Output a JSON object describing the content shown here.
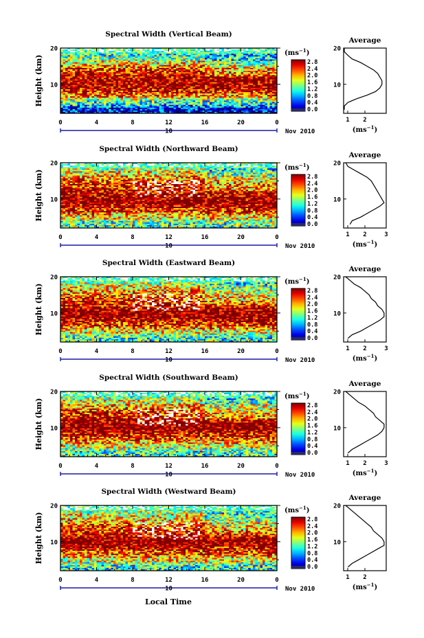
{
  "xlabel": "Local Time",
  "date_label": "Nov 2010",
  "date_tick": "10",
  "colorbar_unit_base": "(ms",
  "colorbar_unit_exp": "−1",
  "profile_title": "Average",
  "profile_xlabel_base": "(ms",
  "profile_xlabel_exp": "−1",
  "chart_data": [
    {
      "type": "heatmap",
      "title": "Spectral Width (Vertical Beam)",
      "ylabel": "Height (km)",
      "x_ticks": [
        "0",
        "4",
        "8",
        "12",
        "16",
        "20",
        "0"
      ],
      "xlim": [
        0,
        24
      ],
      "y_ticks": [
        "20",
        "10"
      ],
      "ylim": [
        2,
        20
      ],
      "colorbar": {
        "ticks": [
          "2.8",
          "2.4",
          "2.0",
          "1.6",
          "1.2",
          "0.8",
          "0.4",
          "0.0"
        ],
        "range": [
          0.0,
          2.8
        ]
      },
      "height_km": [
        3,
        4,
        5,
        6,
        7,
        8,
        9,
        10,
        11,
        12,
        13,
        14,
        15,
        16,
        17,
        18,
        19,
        20
      ],
      "mean_width_profile": [
        0.3,
        0.8,
        1.2,
        1.6,
        2.1,
        2.5,
        2.7,
        2.8,
        2.8,
        2.7,
        2.6,
        2.4,
        2.1,
        1.8,
        1.4,
        1.2,
        1.0,
        1.0
      ],
      "profile_xlim": [
        1,
        3
      ],
      "profile_x_ticks": [
        "1",
        "2"
      ],
      "profile_y_ticks": [
        "20",
        "10"
      ]
    },
    {
      "type": "heatmap",
      "title": "Spectral Width (Northward Beam)",
      "ylabel": "Height (km)",
      "x_ticks": [
        "0",
        "4",
        "8",
        "12",
        "16",
        "20",
        "0"
      ],
      "xlim": [
        0,
        24
      ],
      "y_ticks": [
        "20",
        "10"
      ],
      "ylim": [
        2,
        20
      ],
      "colorbar": {
        "ticks": [
          "2.8",
          "2.4",
          "2.0",
          "1.6",
          "1.2",
          "0.8",
          "0.4",
          "0.0"
        ],
        "range": [
          0.0,
          2.8
        ]
      },
      "height_km": [
        3,
        4,
        5,
        6,
        7,
        8,
        9,
        10,
        11,
        12,
        13,
        14,
        15,
        16,
        17,
        18,
        19,
        20
      ],
      "mean_width_profile": [
        1.3,
        1.4,
        1.8,
        2.1,
        2.4,
        2.7,
        2.9,
        2.8,
        2.7,
        2.6,
        2.5,
        2.4,
        2.3,
        2.1,
        1.8,
        1.5,
        1.2,
        1.1
      ],
      "profile_xlim": [
        1,
        3
      ],
      "profile_x_ticks": [
        "1",
        "2",
        "3"
      ],
      "profile_y_ticks": [
        "20",
        "10"
      ]
    },
    {
      "type": "heatmap",
      "title": "Spectral Width (Eastward Beam)",
      "ylabel": "Height (km)",
      "x_ticks": [
        "0",
        "4",
        "8",
        "12",
        "16",
        "20",
        "0"
      ],
      "xlim": [
        0,
        24
      ],
      "y_ticks": [
        "20",
        "10"
      ],
      "ylim": [
        2,
        20
      ],
      "colorbar": {
        "ticks": [
          "2.8",
          "2.4",
          "2.0",
          "1.6",
          "1.2",
          "0.8",
          "0.4",
          "0.0"
        ],
        "range": [
          0.0,
          2.8
        ]
      },
      "height_km": [
        3,
        4,
        5,
        6,
        7,
        8,
        9,
        10,
        11,
        12,
        13,
        14,
        15,
        16,
        17,
        18,
        19,
        20
      ],
      "mean_width_profile": [
        1.2,
        1.4,
        1.8,
        2.1,
        2.4,
        2.7,
        2.9,
        2.9,
        2.8,
        2.6,
        2.5,
        2.3,
        2.2,
        2.0,
        1.8,
        1.5,
        1.3,
        1.1
      ],
      "profile_xlim": [
        1,
        3
      ],
      "profile_x_ticks": [
        "1",
        "2",
        "3"
      ],
      "profile_y_ticks": [
        "20",
        "10"
      ]
    },
    {
      "type": "heatmap",
      "title": "Spectral Width (Southward Beam)",
      "ylabel": "Height (km)",
      "x_ticks": [
        "0",
        "4",
        "8",
        "12",
        "16",
        "20",
        "0"
      ],
      "xlim": [
        0,
        24
      ],
      "y_ticks": [
        "20",
        "10"
      ],
      "ylim": [
        2,
        20
      ],
      "colorbar": {
        "ticks": [
          "2.8",
          "2.4",
          "2.0",
          "1.6",
          "1.2",
          "0.8",
          "0.4",
          "0.0"
        ],
        "range": [
          0.0,
          2.8
        ]
      },
      "height_km": [
        3,
        4,
        5,
        6,
        7,
        8,
        9,
        10,
        11,
        12,
        13,
        14,
        15,
        16,
        17,
        18,
        19,
        20
      ],
      "mean_width_profile": [
        1.2,
        1.4,
        1.7,
        2.0,
        2.3,
        2.6,
        2.8,
        2.9,
        2.9,
        2.7,
        2.5,
        2.4,
        2.2,
        2.0,
        1.7,
        1.5,
        1.3,
        1.1
      ],
      "profile_xlim": [
        1,
        3
      ],
      "profile_x_ticks": [
        "1",
        "2",
        "3"
      ],
      "profile_y_ticks": [
        "20",
        "10"
      ]
    },
    {
      "type": "heatmap",
      "title": "Spectral Width (Westward Beam)",
      "ylabel": "Height (km)",
      "x_ticks": [
        "0",
        "4",
        "8",
        "12",
        "16",
        "20",
        "0"
      ],
      "xlim": [
        0,
        24
      ],
      "y_ticks": [
        "20",
        "10"
      ],
      "ylim": [
        2,
        20
      ],
      "colorbar": {
        "ticks": [
          "2.8",
          "2.4",
          "2.0",
          "1.6",
          "1.2",
          "0.8",
          "0.4",
          "0.0"
        ],
        "range": [
          0.0,
          2.8
        ]
      },
      "height_km": [
        3,
        4,
        5,
        6,
        7,
        8,
        9,
        10,
        11,
        12,
        13,
        14,
        15,
        16,
        17,
        18,
        19,
        20
      ],
      "mean_width_profile": [
        1.2,
        1.4,
        1.7,
        2.0,
        2.3,
        2.6,
        2.9,
        2.9,
        2.8,
        2.6,
        2.4,
        2.3,
        2.1,
        1.9,
        1.7,
        1.5,
        1.3,
        1.1
      ],
      "profile_xlim": [
        1,
        3
      ],
      "profile_x_ticks": [
        "1",
        "2"
      ],
      "profile_y_ticks": [
        "20",
        "10"
      ]
    }
  ]
}
